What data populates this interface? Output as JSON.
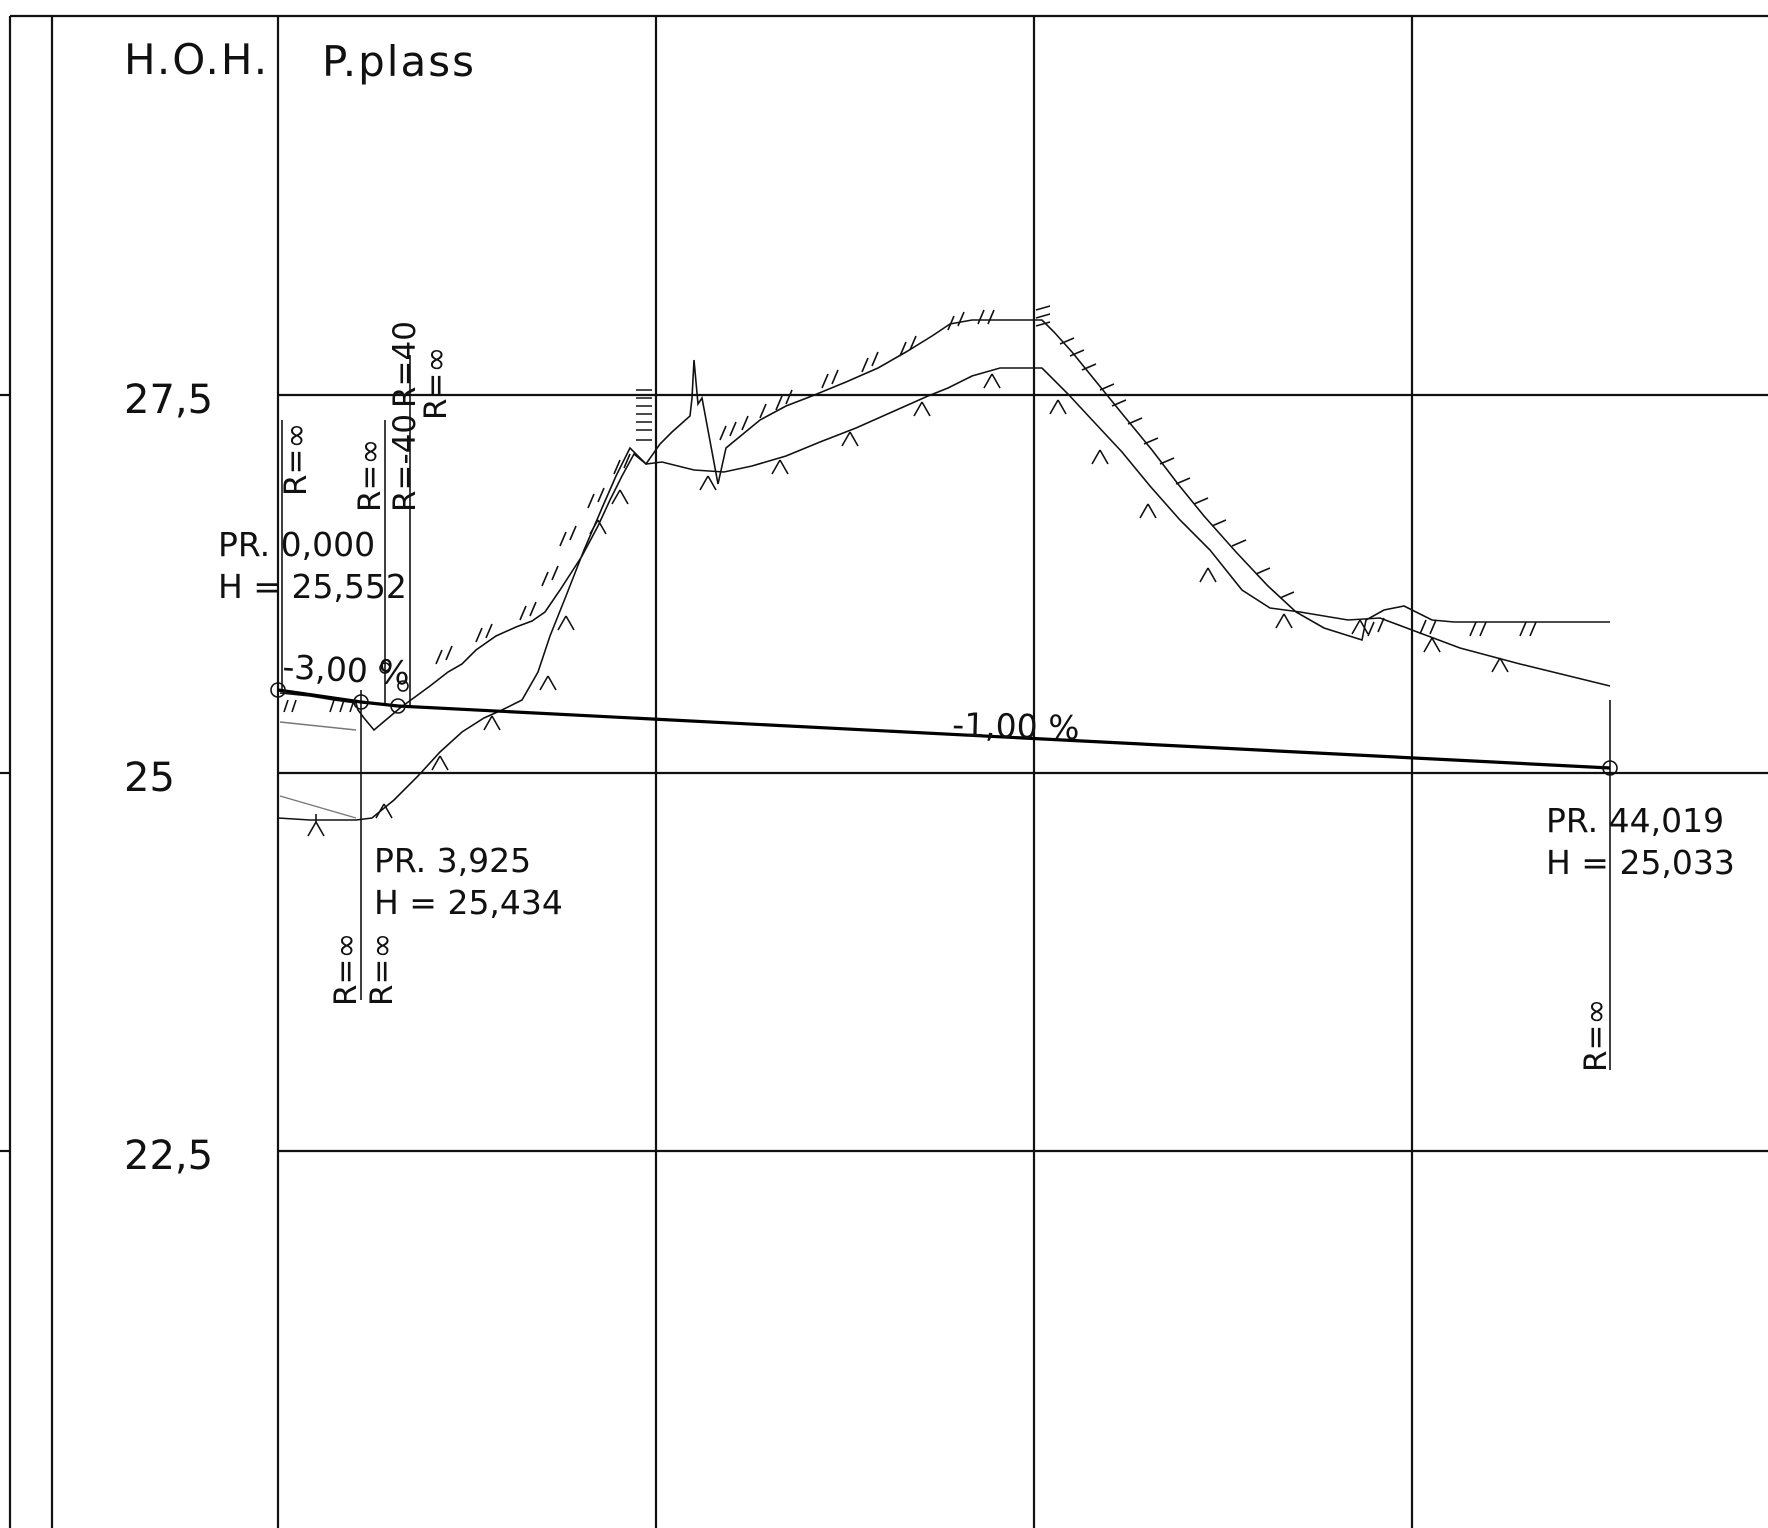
{
  "header": {
    "col_label": "H.O.H.",
    "title": "P.plass"
  },
  "elevation_axis": {
    "ticks": [
      {
        "value": 27.5,
        "label": "27,5"
      },
      {
        "value": 25,
        "label": "25"
      },
      {
        "value": 22.5,
        "label": "22,5"
      }
    ]
  },
  "profile_points": [
    {
      "chainage": 0.0,
      "elevation": 25.552,
      "chainage_label": "PR. 0,000",
      "elevation_label": "H = 25,552",
      "radius_labels": [
        "R=∞"
      ]
    },
    {
      "chainage": 3.925,
      "elevation": 25.434,
      "chainage_label": "PR. 3,925",
      "elevation_label": "H = 25,434",
      "radius_labels": [
        "R=∞",
        "R=∞"
      ]
    },
    {
      "chainage": 44.019,
      "elevation": 25.033,
      "chainage_label": "PR. 44,019",
      "elevation_label": "H = 25,033",
      "radius_labels": [
        "R=∞"
      ]
    }
  ],
  "upper_radius_labels": [
    "R=∞",
    "R=-40",
    "R=40",
    "R=∞"
  ],
  "grades": [
    {
      "value": -3.0,
      "label": "-3,00 %"
    },
    {
      "value": -1.0,
      "label": "-1,00 %"
    }
  ],
  "colors": {
    "line": "#111111",
    "background": "#ffffff"
  }
}
